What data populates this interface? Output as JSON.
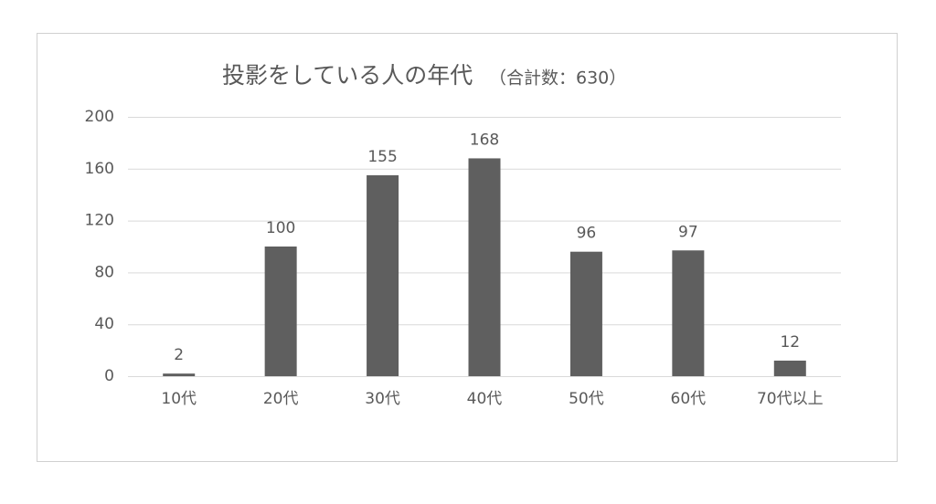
{
  "chart_data": {
    "type": "bar",
    "title": "投影をしている人の年代",
    "subtitle": "（合計数：630）",
    "categories": [
      "10代",
      "20代",
      "30代",
      "40代",
      "50代",
      "60代",
      "70代以上"
    ],
    "values": [
      2,
      100,
      155,
      168,
      96,
      97,
      12
    ],
    "color": "#5f5f5f",
    "ylim": [
      0,
      200
    ],
    "yticks": [
      0,
      40,
      80,
      120,
      160,
      200
    ],
    "grid": true
  }
}
